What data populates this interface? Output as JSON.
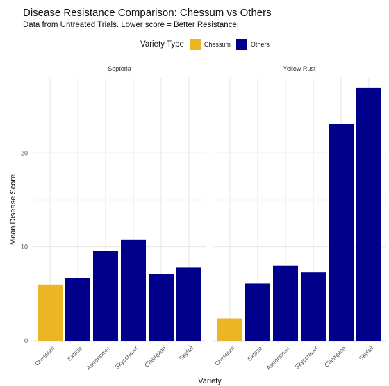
{
  "chart_data": {
    "type": "bar",
    "title": "Disease Resistance Comparison: Chessum vs Others",
    "subtitle": "Data from Untreated Trials. Lower score = Better Resistance.",
    "xlabel": "Variety",
    "ylabel": "Mean Disease Score",
    "ylim": [
      0,
      28
    ],
    "yticks": [
      0,
      10,
      20
    ],
    "grid": true,
    "legend": {
      "title": "Variety Type",
      "position": "top",
      "entries": [
        {
          "label": "Chessum",
          "color": "#EDB423"
        },
        {
          "label": "Others",
          "color": "#00008B"
        }
      ]
    },
    "categories": [
      "Chessum",
      "Extase",
      "Astronomer",
      "Skyscraper",
      "Champion",
      "Skyfall"
    ],
    "panels": [
      {
        "name": "Septoria",
        "values": [
          6.0,
          6.7,
          9.6,
          10.8,
          7.1,
          7.8
        ],
        "groups": [
          "Chessum",
          "Others",
          "Others",
          "Others",
          "Others",
          "Others"
        ]
      },
      {
        "name": "Yellow Rust",
        "values": [
          2.4,
          6.1,
          8.0,
          7.3,
          23.1,
          26.9
        ],
        "groups": [
          "Chessum",
          "Others",
          "Others",
          "Others",
          "Others",
          "Others"
        ]
      }
    ]
  }
}
